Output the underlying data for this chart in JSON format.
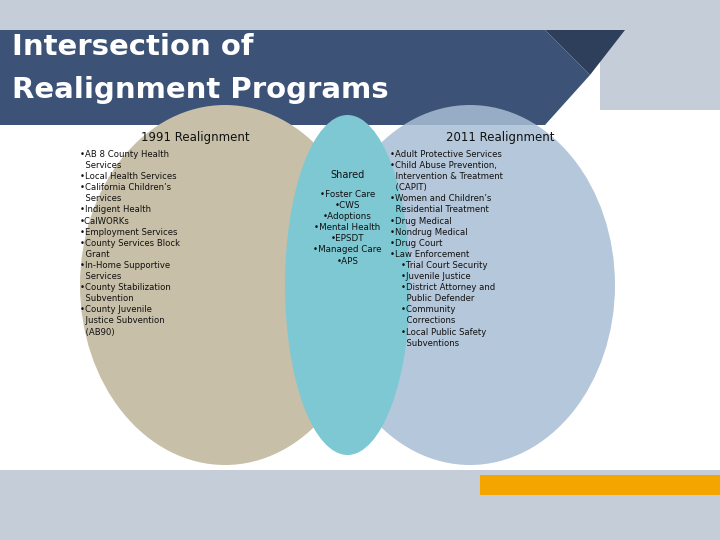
{
  "title_line1": "Intersection of",
  "title_line2": "Realignment Programs",
  "title_color": "#ffffff",
  "title_bg_color": "#3d5277",
  "title_bg_light": "#c5cdd8",
  "bg_color": "#ffffff",
  "label_1991": "1991 Realignment",
  "label_2011": "2011 Realignment",
  "label_shared": "Shared",
  "ellipse1_color": "#c8bfa8",
  "ellipse2_color": "#a8bdd4",
  "shared_color": "#7ec8d4",
  "orange_bar_color": "#f5a500",
  "corner_dark": "#2d3f5a",
  "fig_width": 7.2,
  "fig_height": 5.4,
  "dpi": 100
}
